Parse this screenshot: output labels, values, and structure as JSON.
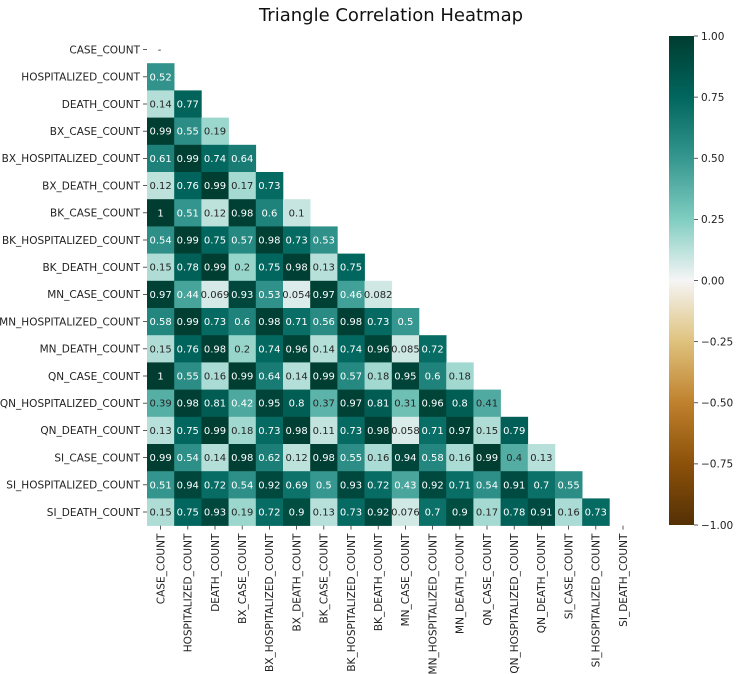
{
  "chart_data": {
    "type": "heatmap",
    "title": "Triangle Correlation Heatmap",
    "variables": [
      "CASE_COUNT",
      "HOSPITALIZED_COUNT",
      "DEATH_COUNT",
      "BX_CASE_COUNT",
      "BX_HOSPITALIZED_COUNT",
      "BX_DEATH_COUNT",
      "BK_CASE_COUNT",
      "BK_HOSPITALIZED_COUNT",
      "BK_DEATH_COUNT",
      "MN_CASE_COUNT",
      "MN_HOSPITALIZED_COUNT",
      "MN_DEATH_COUNT",
      "QN_CASE_COUNT",
      "QN_HOSPITALIZED_COUNT",
      "QN_DEATH_COUNT",
      "SI_CASE_COUNT",
      "SI_HOSPITALIZED_COUNT",
      "SI_DEATH_COUNT"
    ],
    "lower_triangle": [
      [],
      [
        "0.52"
      ],
      [
        "0.14",
        "0.77"
      ],
      [
        "0.99",
        "0.55",
        "0.19"
      ],
      [
        "0.61",
        "0.99",
        "0.74",
        "0.64"
      ],
      [
        "0.12",
        "0.76",
        "0.99",
        "0.17",
        "0.73"
      ],
      [
        "1",
        "0.51",
        "0.12",
        "0.98",
        "0.6",
        "0.1"
      ],
      [
        "0.54",
        "0.99",
        "0.75",
        "0.57",
        "0.98",
        "0.73",
        "0.53"
      ],
      [
        "0.15",
        "0.78",
        "0.99",
        "0.2",
        "0.75",
        "0.98",
        "0.13",
        "0.75"
      ],
      [
        "0.97",
        "0.44",
        "0.069",
        "0.93",
        "0.53",
        "0.054",
        "0.97",
        "0.46",
        "0.082"
      ],
      [
        "0.58",
        "0.99",
        "0.73",
        "0.6",
        "0.98",
        "0.71",
        "0.56",
        "0.98",
        "0.73",
        "0.5"
      ],
      [
        "0.15",
        "0.76",
        "0.98",
        "0.2",
        "0.74",
        "0.96",
        "0.14",
        "0.74",
        "0.96",
        "0.085",
        "0.72"
      ],
      [
        "1",
        "0.55",
        "0.16",
        "0.99",
        "0.64",
        "0.14",
        "0.99",
        "0.57",
        "0.18",
        "0.95",
        "0.6",
        "0.18"
      ],
      [
        "0.39",
        "0.98",
        "0.81",
        "0.42",
        "0.95",
        "0.8",
        "0.37",
        "0.97",
        "0.81",
        "0.31",
        "0.96",
        "0.8",
        "0.41"
      ],
      [
        "0.13",
        "0.75",
        "0.99",
        "0.18",
        "0.73",
        "0.98",
        "0.11",
        "0.73",
        "0.98",
        "0.058",
        "0.71",
        "0.97",
        "0.15",
        "0.79"
      ],
      [
        "0.99",
        "0.54",
        "0.14",
        "0.98",
        "0.62",
        "0.12",
        "0.98",
        "0.55",
        "0.16",
        "0.94",
        "0.58",
        "0.16",
        "0.99",
        "0.4",
        "0.13"
      ],
      [
        "0.51",
        "0.94",
        "0.72",
        "0.54",
        "0.92",
        "0.69",
        "0.5",
        "0.93",
        "0.72",
        "0.43",
        "0.92",
        "0.71",
        "0.54",
        "0.91",
        "0.7",
        "0.55"
      ],
      [
        "0.15",
        "0.75",
        "0.93",
        "0.19",
        "0.72",
        "0.9",
        "0.13",
        "0.73",
        "0.92",
        "0.076",
        "0.7",
        "0.9",
        "0.17",
        "0.78",
        "0.91",
        "0.16",
        "0.73"
      ]
    ],
    "diagonal_label": "-",
    "colorbar": {
      "min": -1.0,
      "max": 1.0,
      "ticks": [
        "1.00",
        "0.75",
        "0.50",
        "0.25",
        "0.00",
        "−0.25",
        "−0.50",
        "−0.75",
        "−1.00"
      ],
      "colormap": "BrBG"
    },
    "colors": {
      "low": "#543005",
      "mid": "#f5f5f5",
      "high": "#003c30"
    }
  }
}
